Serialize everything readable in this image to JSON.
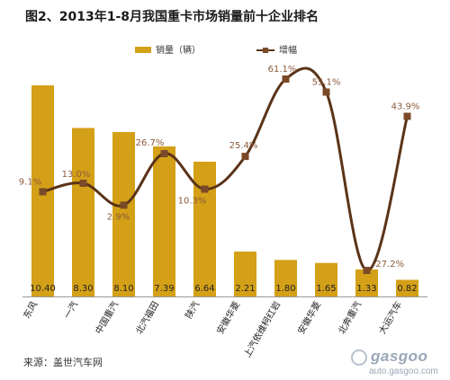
{
  "title": "图2、2013年1-8月我国重卡市场销量前十企业排名",
  "source": "来源：盖世汽车网",
  "watermark": {
    "logo": "gasgoo",
    "url": "auto.gasgoo.com"
  },
  "colors": {
    "bar": "#d4a017",
    "line": "#5a3318",
    "marker_fill": "#7a4a28",
    "text": "#333333",
    "line_label": "#8a5a3a"
  },
  "chart_data": {
    "type": "bar",
    "categories": [
      "东风",
      "一汽",
      "中国重汽",
      "北汽福田",
      "陕汽",
      "安徽华菱",
      "上汽依维柯红岩",
      "安徽华菱",
      "北奔重汽",
      "大运汽车"
    ],
    "series": [
      {
        "name": "销量（辆）",
        "type": "bar",
        "values": [
          10.4,
          8.3,
          8.1,
          7.39,
          6.64,
          2.21,
          1.8,
          1.65,
          1.33,
          0.82
        ],
        "labels": [
          "10.40",
          "8.30",
          "8.10",
          "7.39",
          "6.64",
          "2.21",
          "1.80",
          "1.65",
          "1.33",
          "0.82"
        ]
      },
      {
        "name": "增幅",
        "type": "line",
        "values": [
          9.1,
          13.0,
          2.9,
          26.7,
          10.3,
          25.4,
          61.1,
          55.1,
          -27.2,
          43.9
        ],
        "labels": [
          "9.1%",
          "13.0%",
          "2.9%",
          "26.7%",
          "10.3%",
          "25.4%",
          "61.1%",
          "55.1%",
          "-27.2%",
          "43.9%"
        ]
      }
    ],
    "legend_position": "top",
    "grid": false
  }
}
